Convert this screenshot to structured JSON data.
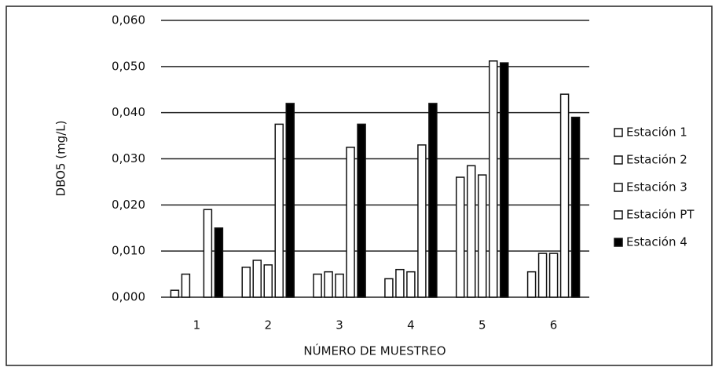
{
  "chart_data": {
    "type": "bar",
    "y_label": "DBO5 (mg/L)",
    "x_label": "NÚMERO DE MUESTREO",
    "categories": [
      "1",
      "2",
      "3",
      "4",
      "5",
      "6"
    ],
    "series": [
      {
        "name": "Estación 1",
        "color": "#ffffff",
        "values": [
          0.0015,
          0.0065,
          0.005,
          0.004,
          0.026,
          0.0055
        ]
      },
      {
        "name": "Estación 2",
        "color": "#ffffff",
        "values": [
          0.005,
          0.008,
          0.0055,
          0.006,
          0.0285,
          0.0095
        ]
      },
      {
        "name": "Estación 3",
        "color": "#ffffff",
        "values": [
          0,
          0.007,
          0.005,
          0.0055,
          0.0265,
          0.0095
        ]
      },
      {
        "name": "Estación PT",
        "color": "#ffffff",
        "values": [
          0.019,
          0.0375,
          0.0325,
          0.033,
          0.0512,
          0.044
        ]
      },
      {
        "name": "Estación 4",
        "color": "#000000",
        "values": [
          0.015,
          0.042,
          0.0375,
          0.042,
          0.0508,
          0.039
        ]
      }
    ],
    "ylim": [
      0,
      0.06
    ],
    "yticks": [
      {
        "value": 0,
        "label": "0,000"
      },
      {
        "value": 0.01,
        "label": "0,010"
      },
      {
        "value": 0.02,
        "label": "0,020"
      },
      {
        "value": 0.03,
        "label": "0,030"
      },
      {
        "value": 0.04,
        "label": "0,040"
      },
      {
        "value": 0.05,
        "label": "0,050"
      },
      {
        "value": 0.06,
        "label": "0,060"
      }
    ],
    "grid": true,
    "legend": "right"
  }
}
